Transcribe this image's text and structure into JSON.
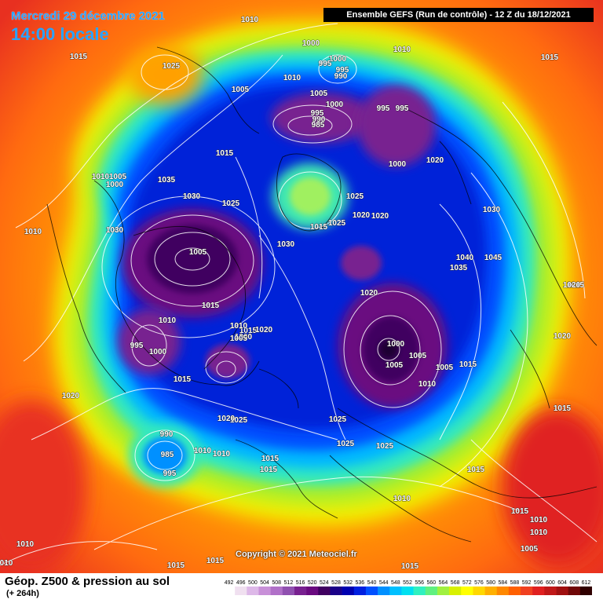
{
  "header": {
    "date": "Mercredi 29 décembre 2021",
    "time": "14:00 locale",
    "run": "Ensemble GEFS  (Run de contrôle)  -  12 Z du 18/12/2021"
  },
  "footer": {
    "parameter": "Géop. Z500 & pression au sol",
    "lead": "(+ 264h)",
    "copyright": "Copyright © 2021 Meteociel.fr"
  },
  "legend_scale": {
    "values": [
      "492",
      "496",
      "500",
      "504",
      "508",
      "512",
      "516",
      "520",
      "524",
      "528",
      "532",
      "536",
      "540",
      "544",
      "548",
      "552",
      "556",
      "560",
      "564",
      "568",
      "572",
      "576",
      "580",
      "584",
      "588",
      "592",
      "596",
      "600",
      "604",
      "608",
      "612"
    ],
    "colors": [
      "#ffffff",
      "#f0e0f0",
      "#ddb8e8",
      "#c890d8",
      "#b070c8",
      "#9050b0",
      "#782090",
      "#6a0a80",
      "#400060",
      "#1a0088",
      "#0000b0",
      "#0020e0",
      "#0050ff",
      "#0090ff",
      "#00c0ff",
      "#00e0f0",
      "#30f0c0",
      "#60f080",
      "#a0f040",
      "#d8f000",
      "#ffff00",
      "#ffd800",
      "#ffb000",
      "#ff8800",
      "#ff6000",
      "#f04020",
      "#e02020",
      "#c01818",
      "#a01010",
      "#700808",
      "#300000"
    ]
  },
  "pressure_labels": [
    {
      "text": "1010"
    },
    {
      "text": "1000"
    },
    {
      "text": "1000"
    },
    {
      "text": "995"
    },
    {
      "text": "995"
    },
    {
      "text": "990"
    },
    {
      "text": "1015"
    },
    {
      "text": "1010"
    },
    {
      "text": "1025"
    },
    {
      "text": "1005"
    },
    {
      "text": "1010"
    },
    {
      "text": "1005"
    },
    {
      "text": "1000"
    },
    {
      "text": "995"
    },
    {
      "text": "995"
    },
    {
      "text": "995"
    },
    {
      "text": "990"
    },
    {
      "text": "985"
    },
    {
      "text": "1015"
    },
    {
      "text": "1000"
    },
    {
      "text": "1020"
    },
    {
      "text": "1035"
    },
    {
      "text": "1010"
    },
    {
      "text": "1005"
    },
    {
      "text": "1000"
    },
    {
      "text": "1030"
    },
    {
      "text": "1025"
    },
    {
      "text": "1025"
    },
    {
      "text": "1020"
    },
    {
      "text": "1020"
    },
    {
      "text": "1030"
    },
    {
      "text": "1010"
    },
    {
      "text": "1025"
    },
    {
      "text": "1015"
    },
    {
      "text": "1030"
    },
    {
      "text": "1005"
    },
    {
      "text": "1030"
    },
    {
      "text": "1040"
    },
    {
      "text": "1045"
    },
    {
      "text": "1035"
    },
    {
      "text": "1015"
    },
    {
      "text": "1010"
    },
    {
      "text": "1015"
    },
    {
      "text": "1020"
    },
    {
      "text": "1010"
    },
    {
      "text": "1000"
    },
    {
      "text": "1005"
    },
    {
      "text": "995"
    },
    {
      "text": "1000"
    },
    {
      "text": "1015"
    },
    {
      "text": "1020"
    },
    {
      "text": "1005"
    },
    {
      "text": "1000"
    },
    {
      "text": "1005"
    },
    {
      "text": "1005"
    },
    {
      "text": "1015"
    },
    {
      "text": "1010"
    },
    {
      "text": "1020"
    },
    {
      "text": "1015"
    },
    {
      "text": "1015"
    },
    {
      "text": "1020"
    },
    {
      "text": "1025"
    },
    {
      "text": "1025"
    },
    {
      "text": "1020"
    },
    {
      "text": "1025"
    },
    {
      "text": "1025"
    },
    {
      "text": "990"
    },
    {
      "text": "985"
    },
    {
      "text": "995"
    },
    {
      "text": "1010"
    },
    {
      "text": "1010"
    },
    {
      "text": "1015"
    },
    {
      "text": "1015"
    },
    {
      "text": "1015"
    },
    {
      "text": "1010"
    },
    {
      "text": "1015"
    },
    {
      "text": "1010"
    },
    {
      "text": "1010"
    },
    {
      "text": "1005"
    },
    {
      "text": "1010"
    },
    {
      "text": "010"
    },
    {
      "text": "1015"
    },
    {
      "text": "1015"
    },
    {
      "text": "1015"
    },
    {
      "text": "1015"
    },
    {
      "text": "1020"
    }
  ]
}
